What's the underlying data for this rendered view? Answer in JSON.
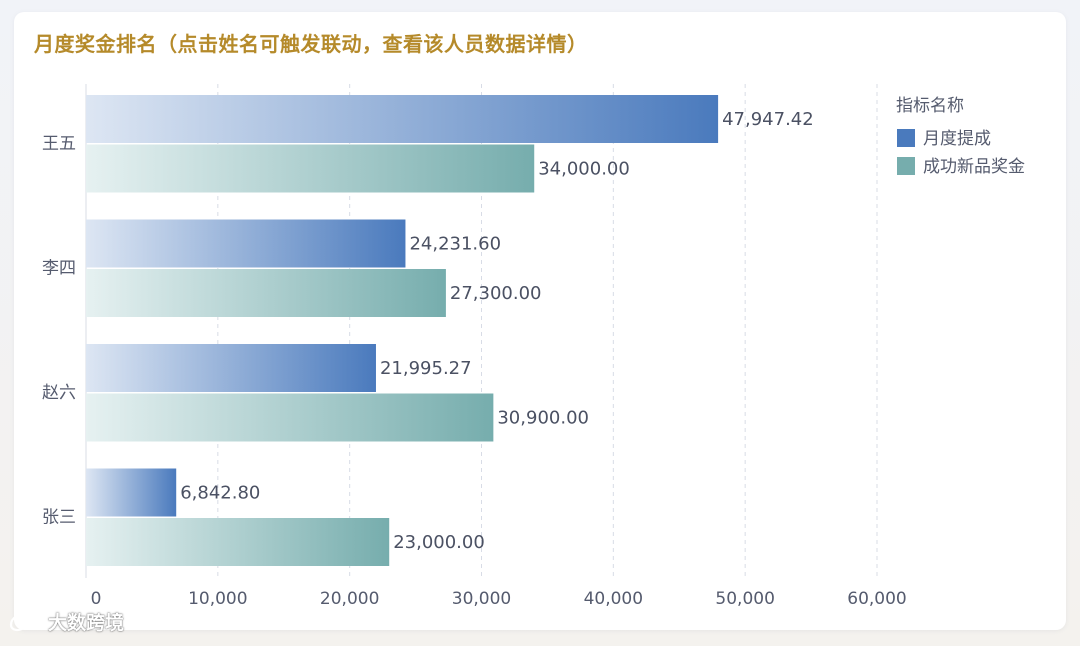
{
  "title": "月度奖金排名（点击姓名可触发联动，查看该人员数据详情）",
  "watermark": "大数跨境",
  "colors": {
    "title": "#b58a2a",
    "series1_start": "#dde6f3",
    "series1_end": "#4a7abd",
    "series2_start": "#e6f1f1",
    "series2_end": "#76adad",
    "grid": "#d8dce6",
    "axis_text": "#555b6e",
    "label_text": "#4b5163"
  },
  "chart_data": {
    "type": "bar",
    "orientation": "horizontal",
    "categories": [
      "王五",
      "李四",
      "赵六",
      "张三"
    ],
    "series": [
      {
        "name": "月度提成",
        "values": [
          47947.42,
          24231.6,
          21995.27,
          6842.8
        ],
        "labels": [
          "47,947.42",
          "24,231.60",
          "21,995.27",
          "6,842.80"
        ]
      },
      {
        "name": "成功新品奖金",
        "values": [
          34000.0,
          27300.0,
          30900.0,
          23000.0
        ],
        "labels": [
          "34,000.00",
          "27,300.00",
          "30,900.00",
          "23,000.00"
        ]
      }
    ],
    "xlim": [
      0,
      60000
    ],
    "xticks": [
      0,
      10000,
      20000,
      30000,
      40000,
      50000,
      60000
    ],
    "xtick_labels": [
      "0",
      "10,000",
      "20,000",
      "30,000",
      "40,000",
      "50,000",
      "60,000"
    ],
    "grid": "vertical-dashed",
    "legend_title": "指标名称",
    "legend_position": "top-right"
  }
}
